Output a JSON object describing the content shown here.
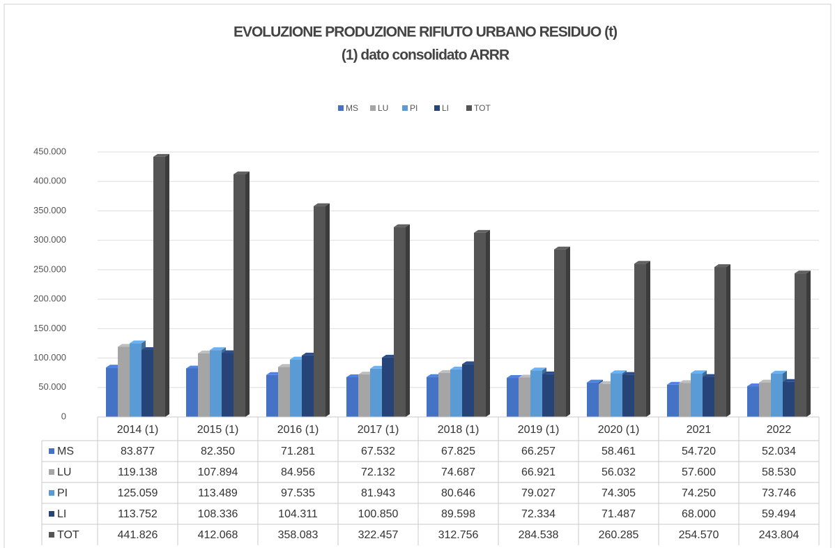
{
  "chart_data": {
    "type": "bar",
    "title": "EVOLUZIONE PRODUZIONE RIFIUTO URBANO RESIDUO (t)",
    "subtitle": "(1) dato consolidato ARRR",
    "categories": [
      "2014 (1)",
      "2015 (1)",
      "2016 (1)",
      "2017 (1)",
      "2018 (1)",
      "2019 (1)",
      "2020 (1)",
      "2021",
      "2022"
    ],
    "series": [
      {
        "name": "MS",
        "color": "#4472c4",
        "values": [
          83877,
          82350,
          71281,
          67532,
          67825,
          66257,
          58461,
          54720,
          52034
        ],
        "value_labels": [
          "83.877",
          "82.350",
          "71.281",
          "67.532",
          "67.825",
          "66.257",
          "58.461",
          "54.720",
          "52.034"
        ]
      },
      {
        "name": "LU",
        "color": "#a5a5a5",
        "values": [
          119138,
          107894,
          84956,
          72132,
          74687,
          66921,
          56032,
          57600,
          58530
        ],
        "value_labels": [
          "119.138",
          "107.894",
          "84.956",
          "72.132",
          "74.687",
          "66.921",
          "56.032",
          "57.600",
          "58.530"
        ]
      },
      {
        "name": "PI",
        "color": "#5b9bd5",
        "values": [
          125059,
          113489,
          97535,
          81943,
          80646,
          79027,
          74305,
          74250,
          73746
        ],
        "value_labels": [
          "125.059",
          "113.489",
          "97.535",
          "81.943",
          "80.646",
          "79.027",
          "74.305",
          "74.250",
          "73.746"
        ]
      },
      {
        "name": "LI",
        "color": "#264478",
        "values": [
          113752,
          108336,
          104311,
          100850,
          89598,
          72334,
          71487,
          68000,
          59494
        ],
        "value_labels": [
          "113.752",
          "108.336",
          "104.311",
          "100.850",
          "89.598",
          "72.334",
          "71.487",
          "68.000",
          "59.494"
        ]
      },
      {
        "name": "TOT",
        "color": "#555555",
        "values": [
          441826,
          412068,
          358083,
          322457,
          312756,
          284538,
          260285,
          254570,
          243804
        ],
        "value_labels": [
          "441.826",
          "412.068",
          "358.083",
          "322.457",
          "312.756",
          "284.538",
          "260.285",
          "254.570",
          "243.804"
        ]
      }
    ],
    "ylim": [
      0,
      450000
    ],
    "yticks": [
      0,
      {
        "value": 50000,
        "label": "50.000"
      },
      {
        "value": 100000,
        "label": "100.000"
      },
      {
        "value": 150000,
        "label": "150.000"
      },
      {
        "value": 200000,
        "label": "200.000"
      },
      {
        "value": 250000,
        "label": "250.000"
      },
      {
        "value": 300000,
        "label": "300.000"
      },
      {
        "value": 350000,
        "label": "350.000"
      },
      {
        "value": 400000,
        "label": "400.000"
      },
      {
        "value": 450000,
        "label": "450.000"
      }
    ],
    "grid": true,
    "legend": "top"
  }
}
